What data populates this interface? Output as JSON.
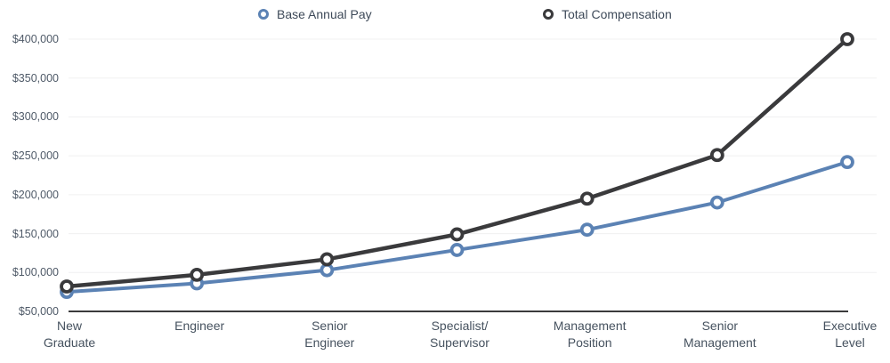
{
  "colors": {
    "background": "#ffffff",
    "grid": "#f0f0f1",
    "axis_baseline": "#3a3a3c",
    "y_tick_label": "#4f5a68",
    "category_label": "#46525f",
    "legend_text": "#3e4a59",
    "series_base": "#5b82b4",
    "series_total": "#3a3a3c"
  },
  "legend": {
    "items": [
      {
        "label": "Base Annual Pay",
        "marker": "ring-circle-icon",
        "color": "#5b82b4"
      },
      {
        "label": "Total Compensation",
        "marker": "ring-circle-icon",
        "color": "#3a3a3c"
      }
    ],
    "position": "top"
  },
  "chart_data": {
    "type": "line",
    "title": "",
    "xlabel": "",
    "ylabel": "",
    "categories": [
      "New Graduate",
      "Engineer",
      "Senior Engineer",
      "Specialist/Supervisor",
      "Management Position",
      "Senior Management",
      "Executive Level"
    ],
    "category_display_lines": [
      [
        "New",
        "Graduate"
      ],
      [
        "Engineer"
      ],
      [
        "Senior",
        "Engineer"
      ],
      [
        "Specialist/",
        "Supervisor"
      ],
      [
        "Management",
        "Position"
      ],
      [
        "Senior",
        "Management"
      ],
      [
        "Executive",
        "Level"
      ]
    ],
    "series": [
      {
        "name": "Base Annual Pay",
        "color": "#5b82b4",
        "marker": "open-circle",
        "values": [
          75000,
          86000,
          103000,
          129000,
          155000,
          190000,
          242000
        ]
      },
      {
        "name": "Total Compensation",
        "color": "#3a3a3c",
        "marker": "open-circle",
        "values": [
          82000,
          97000,
          117000,
          149000,
          195000,
          251000,
          400000
        ]
      }
    ],
    "ylim": [
      50000,
      400000
    ],
    "y_ticks": [
      50000,
      100000,
      150000,
      200000,
      250000,
      300000,
      350000,
      400000
    ],
    "y_tick_labels": [
      "$50,000",
      "$100,000",
      "$150,000",
      "$200,000",
      "$250,000",
      "$300,000",
      "$350,000",
      "$400,000"
    ],
    "grid": true,
    "legend_position": "top"
  }
}
